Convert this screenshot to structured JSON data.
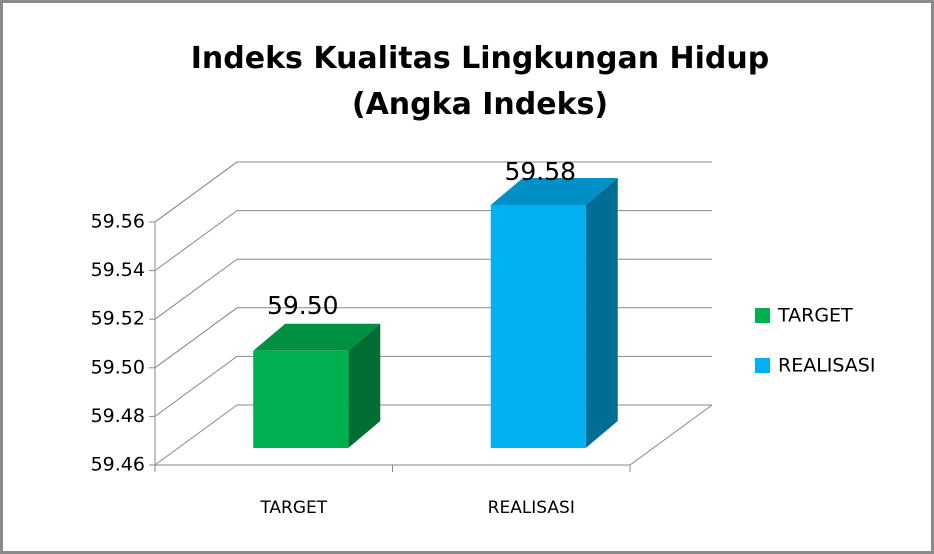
{
  "chart_data": {
    "type": "bar3d",
    "title": "Indeks Kualitas Lingkungan Hidup (Angka Indeks)",
    "categories": [
      "TARGET",
      "REALISASI"
    ],
    "series": [
      {
        "name": "TARGET",
        "color": "#00b050",
        "values": [
          59.5,
          null
        ],
        "value_labels": [
          "59.50",
          null
        ]
      },
      {
        "name": "REALISASI",
        "color": "#00b0f0",
        "values": [
          null,
          59.58
        ],
        "value_labels": [
          null,
          "59.58"
        ]
      }
    ],
    "ylim": [
      59.46,
      59.56
    ],
    "yticks": [
      59.46,
      59.48,
      {
        "value": 59.5,
        "label": "59.50"
      },
      59.52,
      59.54,
      59.56
    ],
    "grid": true,
    "legend": "right"
  }
}
